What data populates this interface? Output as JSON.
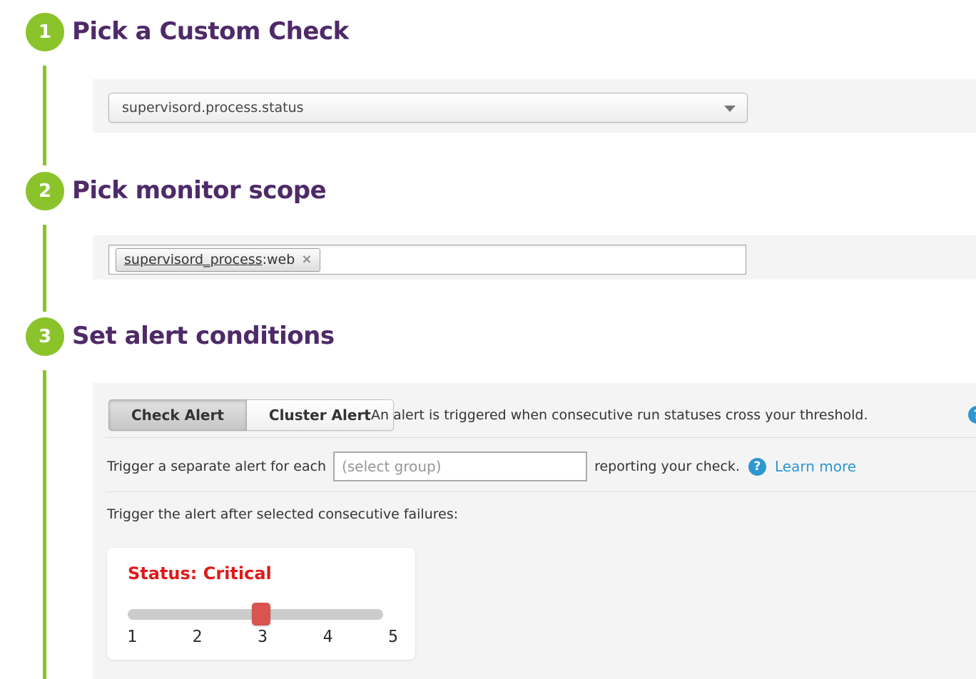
{
  "steps": [
    {
      "number": "1",
      "title": "Pick a Custom Check"
    },
    {
      "number": "2",
      "title": "Pick monitor scope"
    },
    {
      "number": "3",
      "title": "Set alert conditions"
    }
  ],
  "step1": {
    "check_dropdown": {
      "value": "supervisord.process.status",
      "icon": "dropdown-arrow"
    }
  },
  "step2": {
    "scope_tag": {
      "name": "supervisord_process",
      "rest": ":web",
      "remove_icon": "×"
    }
  },
  "step3": {
    "tabs": [
      {
        "label": "Check Alert",
        "active": true
      },
      {
        "label": "Cluster Alert",
        "active": false
      }
    ],
    "tabs_caption": "An alert is triggered when consecutive run statuses cross your threshold.",
    "group_row": {
      "label_before": "Trigger a separate alert for each",
      "group_placeholder": "(select group)",
      "label_after": "reporting your check.",
      "help_icon": "?",
      "learn_more": "Learn more"
    },
    "failures_label": "Trigger the alert after selected consecutive failures:",
    "slider": {
      "label": "Status: Critical",
      "value": "3",
      "min": "1",
      "max": "5",
      "ticks": [
        "1",
        "2",
        "3",
        "4",
        "5"
      ]
    }
  },
  "colors": {
    "step_green": "#8bc32b",
    "heading_purple": "#4e2a69",
    "panel_gray": "#f4f4f4",
    "link_blue": "#2e96d0",
    "critical_red": "#e01a1a",
    "slider_handle_red": "#d9534f",
    "slider_track_gray": "#cccccc"
  }
}
